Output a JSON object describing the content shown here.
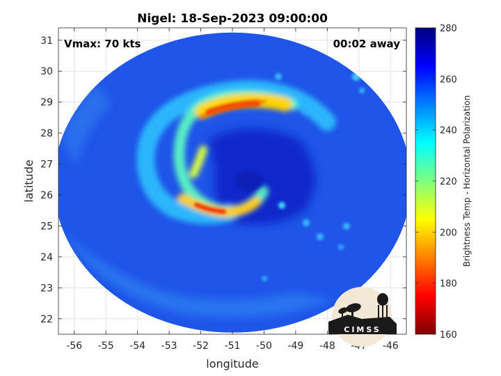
{
  "chart_data": {
    "type": "heatmap",
    "title": "Nigel: 18-Sep-2023 09:00:00",
    "xlabel": "longitude",
    "ylabel": "latitude",
    "xlim": [
      -56.5,
      -45.5
    ],
    "ylim": [
      21.5,
      31.4
    ],
    "xticks": [
      -56,
      -55,
      -54,
      -53,
      -52,
      -51,
      -50,
      -49,
      -48,
      -47,
      -46
    ],
    "yticks": [
      22,
      23,
      24,
      25,
      26,
      27,
      28,
      29,
      30,
      31
    ],
    "grid": true,
    "annotations": {
      "left": "Vmax: 70 kts",
      "right": "00:02 away"
    },
    "colorbar": {
      "label": "Brightness Temp - Horizontal Polarization",
      "range": [
        160,
        280
      ],
      "ticks": [
        160,
        180,
        200,
        220,
        240,
        260,
        280
      ],
      "colormap": [
        "#800000",
        "#ff0000",
        "#ff8000",
        "#ffff00",
        "#80ff80",
        "#00ffff",
        "#0080ff",
        "#0000ff",
        "#000080"
      ]
    },
    "swath": {
      "center_lon": -51.0,
      "center_lat": 26.4,
      "radius_lon": 5.65,
      "radius_lat": 4.85
    },
    "eye": {
      "lon": -50.5,
      "lat": 26.5
    },
    "features": [
      {
        "name": "north-rainband",
        "lon": -51.0,
        "lat": 28.85,
        "value": 172
      },
      {
        "name": "west-spiral",
        "lon": -52.9,
        "lat": 27.4,
        "value": 228
      },
      {
        "name": "southwest-rainband",
        "lon": -51.9,
        "lat": 25.6,
        "value": 192
      }
    ],
    "logo": "CIMSS"
  }
}
